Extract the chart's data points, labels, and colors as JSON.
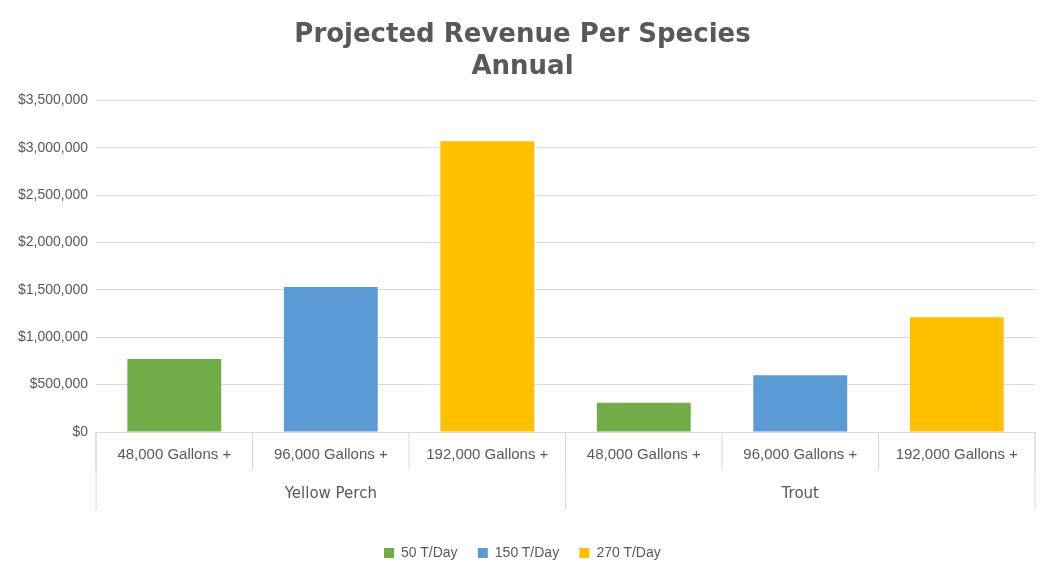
{
  "chart_data": {
    "type": "bar",
    "title": "Projected Revenue Per Species",
    "subtitle": "Annual",
    "categories": [
      "48,000 Gallons +",
      "96,000 Gallons +",
      "192,000 Gallons +",
      "48,000 Gallons +",
      "96,000 Gallons +",
      "192,000 Gallons +"
    ],
    "stacked": true,
    "series": [
      {
        "name": "50 T/Day",
        "color": "#70ad47",
        "values": [
          770000,
          null,
          null,
          310000,
          null,
          null
        ]
      },
      {
        "name": "150 T/Day",
        "color": "#5b9bd5",
        "values": [
          null,
          1530000,
          null,
          null,
          600000,
          null
        ]
      },
      {
        "name": "270 T/Day",
        "color": "#ffc000",
        "values": [
          null,
          null,
          3070000,
          null,
          null,
          1210000
        ]
      }
    ],
    "ylim": [
      0,
      3500000
    ],
    "yticks": [
      {
        "value": 0,
        "label": "$0"
      },
      {
        "value": 500000,
        "label": "$500,000"
      },
      {
        "value": 1000000,
        "label": "$1,000,000"
      },
      {
        "value": 1500000,
        "label": "$1,500,000"
      },
      {
        "value": 2000000,
        "label": "$2,000,000"
      },
      {
        "value": 2500000,
        "label": "$2,500,000"
      },
      {
        "value": 3000000,
        "label": "$3,000,000"
      },
      {
        "value": 3500000,
        "label": "$3,500,000"
      }
    ],
    "annotations": [
      "Yellow Perch",
      "Trout"
    ],
    "grid": "y",
    "legend": "bottom"
  }
}
